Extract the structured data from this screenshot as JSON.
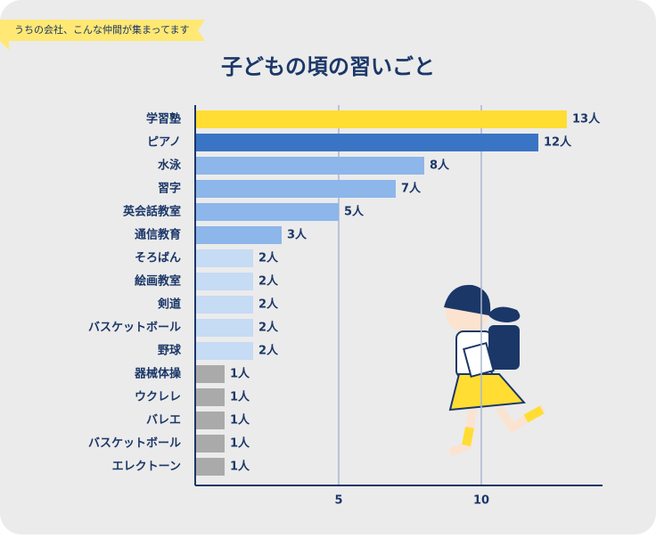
{
  "tag": "うちの会社、こんな仲間が集まってます",
  "chart_data": {
    "type": "hbar",
    "title": "子どもの頃の習いごと",
    "categories": [
      "学習塾",
      "ピアノ",
      "水泳",
      "習字",
      "英会話教室",
      "通信教育",
      "そろばん",
      "絵画教室",
      "剣道",
      "バスケットボール",
      "野球",
      "器械体操",
      "ウクレレ",
      "バレエ",
      "バスケットボール",
      "エレクトーン"
    ],
    "values": [
      13,
      12,
      8,
      7,
      5,
      3,
      2,
      2,
      2,
      2,
      2,
      1,
      1,
      1,
      1,
      1
    ],
    "value_labels": [
      "13人",
      "12人",
      "8人",
      "7人",
      "5人",
      "3人",
      "2人",
      "2人",
      "2人",
      "2人",
      "2人",
      "1人",
      "1人",
      "1人",
      "1人",
      "1人"
    ],
    "colors": [
      "#ffdd33",
      "#3a74c4",
      "#8db6ea",
      "#8db6ea",
      "#8db6ea",
      "#8db6ea",
      "#c6dbf4",
      "#c6dbf4",
      "#c6dbf4",
      "#c6dbf4",
      "#c6dbf4",
      "#aaaaaa",
      "#aaaaaa",
      "#aaaaaa",
      "#aaaaaa",
      "#aaaaaa"
    ],
    "xlim": [
      0,
      14.25
    ],
    "xticks": [
      5,
      10
    ],
    "grid": true
  }
}
